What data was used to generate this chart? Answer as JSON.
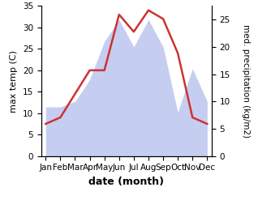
{
  "months": [
    "Jan",
    "Feb",
    "Mar",
    "Apr",
    "May",
    "Jun",
    "Jul",
    "Aug",
    "Sep",
    "Oct",
    "Nov",
    "Dec"
  ],
  "temperature": [
    7.5,
    9.0,
    14.5,
    20.0,
    20.0,
    33.0,
    29.0,
    34.0,
    32.0,
    24.0,
    9.0,
    7.5
  ],
  "precipitation_right": [
    9,
    9,
    10,
    14,
    21,
    25,
    20,
    25,
    20,
    8,
    16,
    10
  ],
  "temp_color": "#cc3333",
  "precip_color": "#c5cef0",
  "ylim_temp": [
    0,
    35
  ],
  "ylim_precip": [
    0,
    27.5
  ],
  "precip_scale_factor": 1.272727,
  "ylabel_left": "max temp (C)",
  "ylabel_right": "med. precipitation (kg/m2)",
  "xlabel": "date (month)",
  "yticks_left": [
    0,
    5,
    10,
    15,
    20,
    25,
    30,
    35
  ],
  "yticks_right": [
    0,
    5,
    10,
    15,
    20,
    25
  ],
  "label_fontsize": 8,
  "tick_fontsize": 7.5
}
